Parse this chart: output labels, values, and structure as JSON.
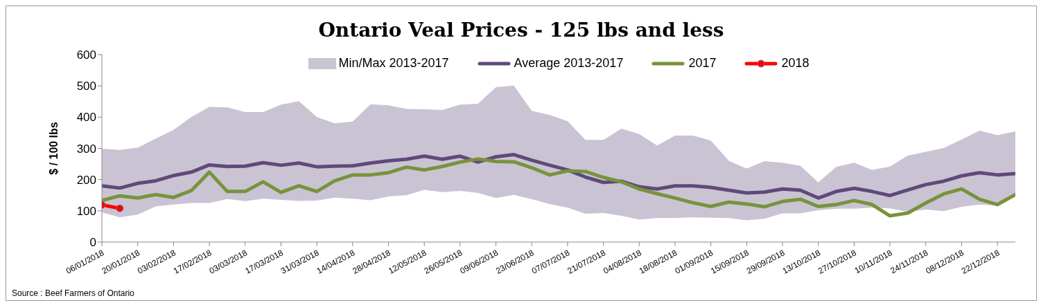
{
  "chart_data": {
    "type": "line",
    "title": "Ontario Veal Prices - 125 lbs and less",
    "ylabel": "$ / 100 lbs",
    "annotations": [
      "Min/Max 2013-2017",
      "Source : Beef Farmers of Ontario"
    ],
    "categories": [
      "06/01/2018",
      null,
      "20/01/2018",
      null,
      "03/02/2018",
      null,
      "17/02/2018",
      null,
      "03/03/2018",
      null,
      "17/03/2018",
      null,
      "31/03/2018",
      null,
      "14/04/2018",
      null,
      "28/04/2018",
      null,
      "12/05/2018",
      null,
      "26/05/2018",
      null,
      "09/06/2018",
      null,
      "23/06/2018",
      null,
      "07/07/2018",
      null,
      "21/07/2018",
      null,
      "04/08/2018",
      null,
      "18/08/2018",
      null,
      "01/09/2018",
      null,
      "15/09/2018",
      null,
      "29/09/2018",
      null,
      "13/10/2018",
      null,
      "27/10/2018",
      null,
      "10/11/2018",
      null,
      "24/11/2018",
      null,
      "08/12/2018",
      null,
      "22/12/2018",
      null
    ],
    "series": [
      {
        "name": "Average 2013-2017",
        "color": "#5f497a",
        "marker": "none",
        "values": [
          180,
          173,
          188,
          196,
          213,
          224,
          247,
          242,
          243,
          254,
          246,
          253,
          241,
          243,
          244,
          253,
          260,
          265,
          275,
          265,
          275,
          256,
          273,
          280,
          262,
          246,
          231,
          208,
          191,
          195,
          177,
          170,
          180,
          180,
          175,
          166,
          157,
          160,
          170,
          166,
          141,
          162,
          172,
          162,
          149,
          167,
          184,
          195,
          212,
          222,
          215,
          219
        ],
        "lower": [
          95,
          79,
          88,
          114,
          120,
          125,
          125,
          138,
          131,
          139,
          135,
          132,
          133,
          142,
          139,
          134,
          146,
          150,
          167,
          160,
          164,
          157,
          141,
          151,
          137,
          122,
          110,
          91,
          93,
          84,
          72,
          77,
          77,
          79,
          78,
          77,
          70,
          75,
          92,
          92,
          102,
          107,
          107,
          110,
          108,
          97,
          104,
          99,
          113,
          120,
          117,
          148
        ],
        "upper": [
          299,
          295,
          302,
          331,
          359,
          401,
          433,
          431,
          416,
          416,
          440,
          451,
          400,
          380,
          386,
          441,
          438,
          426,
          425,
          423,
          440,
          443,
          496,
          501,
          420,
          407,
          387,
          327,
          327,
          363,
          346,
          309,
          341,
          341,
          325,
          260,
          235,
          259,
          254,
          244,
          191,
          241,
          254,
          231,
          242,
          277,
          289,
          301,
          328,
          357,
          342,
          354
        ]
      },
      {
        "name": "2017",
        "color": "#77933c",
        "marker": "none",
        "values": [
          133,
          148,
          141,
          152,
          143,
          165,
          224,
          162,
          162,
          193,
          159,
          180,
          162,
          196,
          215,
          215,
          222,
          240,
          231,
          242,
          256,
          266,
          258,
          257,
          238,
          215,
          228,
          226,
          207,
          193,
          170,
          155,
          141,
          126,
          114,
          128,
          122,
          113,
          130,
          137,
          114,
          120,
          133,
          120,
          84,
          93,
          125,
          154,
          170,
          137,
          120,
          152
        ]
      },
      {
        "name": "2018",
        "color": "#ff0000",
        "marker": "circle",
        "values": [
          119,
          108,
          null,
          null,
          null,
          null,
          null,
          null,
          null,
          null,
          null,
          null,
          null,
          null,
          null,
          null,
          null,
          null,
          null,
          null,
          null,
          null,
          null,
          null,
          null,
          null,
          null,
          null,
          null,
          null,
          null,
          null,
          null,
          null,
          null,
          null,
          null,
          null,
          null,
          null,
          null,
          null,
          null,
          null,
          null,
          null,
          null,
          null,
          null,
          null,
          null,
          null
        ]
      }
    ],
    "ylim": [
      0,
      600
    ],
    "yticks": [
      0,
      100,
      200,
      300,
      400,
      500,
      600
    ],
    "grid": false,
    "legend": "top"
  }
}
